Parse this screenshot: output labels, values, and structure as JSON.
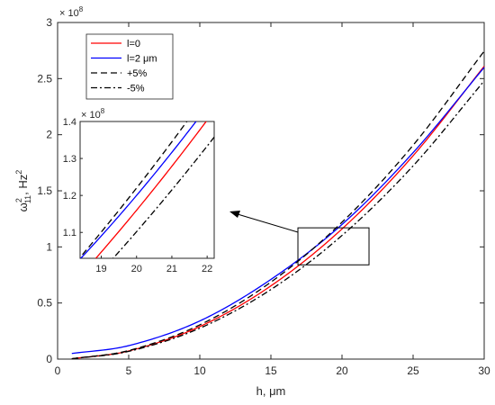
{
  "chart_data": {
    "type": "line",
    "x_label": "h, μm",
    "y_label_main": "ω",
    "y_label_sub": "11",
    "y_label_sup": "2",
    "y_label_unit": ", Hz",
    "y_label_unit_sup": "2",
    "y_multiplier": "× 10",
    "y_multiplier_exp": "8",
    "xlim": [
      0,
      30
    ],
    "ylim": [
      0,
      3
    ],
    "x_ticks": [
      0,
      5,
      10,
      15,
      20,
      25,
      30
    ],
    "y_ticks": [
      0,
      0.5,
      1,
      1.5,
      2,
      2.5,
      3
    ],
    "x_tick_labels": [
      "0",
      "5",
      "10",
      "15",
      "20",
      "25",
      "30"
    ],
    "y_tick_labels": [
      "0",
      "0.5",
      "1",
      "1.5",
      "2",
      "2.5",
      "3"
    ],
    "legend_position": "top-left",
    "series": [
      {
        "name": "l=0",
        "color": "#ff0000",
        "dash": "solid",
        "x": [
          1,
          5,
          10,
          15,
          20,
          25,
          30
        ],
        "y": [
          0.0029,
          0.0725,
          0.29,
          0.6525,
          1.16,
          1.8125,
          2.61
        ]
      },
      {
        "name": "l=2 μm",
        "color": "#0000ff",
        "dash": "solid",
        "x": [
          1,
          5,
          10,
          15,
          20,
          25,
          30
        ],
        "y": [
          0.05,
          0.12,
          0.34,
          0.71,
          1.2,
          1.84,
          2.6
        ]
      },
      {
        "name": "+5%",
        "color": "#000000",
        "dash": "dashed",
        "x": [
          1,
          5,
          10,
          15,
          20,
          25,
          30
        ],
        "y": [
          0.00305,
          0.0763,
          0.305,
          0.686,
          1.22,
          1.906,
          2.745
        ]
      },
      {
        "name": "-5%",
        "color": "#000000",
        "dash": "dashdot",
        "x": [
          1,
          5,
          10,
          15,
          20,
          25,
          30
        ],
        "y": [
          0.00276,
          0.0689,
          0.2755,
          0.62,
          1.102,
          1.722,
          2.48
        ]
      }
    ],
    "zoom_box": {
      "xlim": [
        16.9,
        21.9
      ],
      "ylim": [
        0.84,
        1.17
      ]
    },
    "inset": {
      "xlim": [
        18.4,
        22.2
      ],
      "ylim": [
        1.03,
        1.4
      ],
      "x_ticks": [
        19,
        20,
        21,
        22
      ],
      "y_ticks": [
        1.1,
        1.2,
        1.3,
        1.4
      ],
      "x_tick_labels": [
        "19",
        "20",
        "21",
        "22"
      ],
      "y_tick_labels": [
        "1.1",
        "1.2",
        "1.3",
        "1.4"
      ],
      "y_multiplier": "× 10",
      "y_multiplier_exp": "8"
    }
  }
}
